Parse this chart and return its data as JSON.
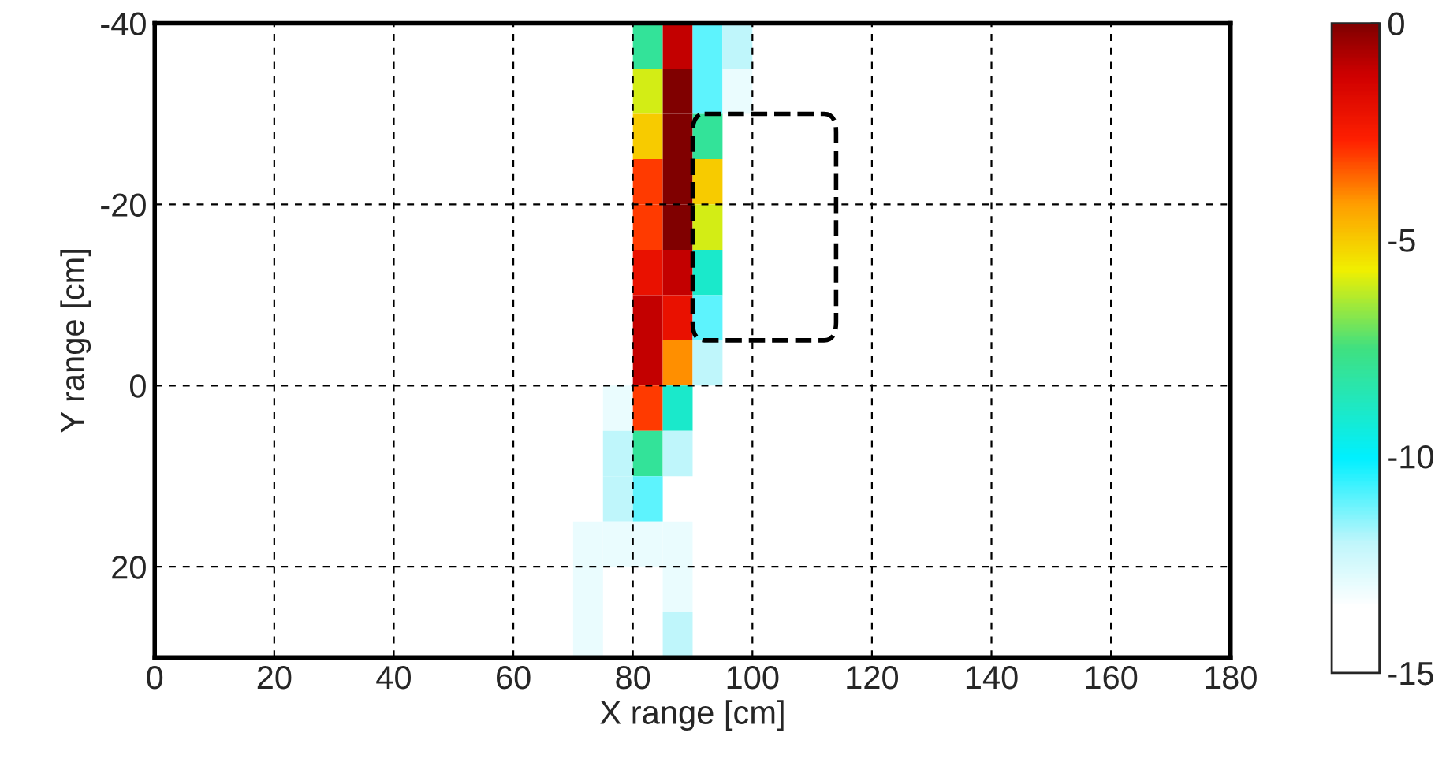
{
  "chart_data": {
    "type": "heatmap",
    "xlabel": "X range [cm]",
    "ylabel": "Y range [cm]",
    "x": [
      2.5,
      7.5,
      12.5,
      17.5,
      22.5,
      27.5,
      32.5,
      37.5,
      42.5,
      47.5,
      52.5,
      57.5,
      62.5,
      67.5,
      72.5,
      77.5,
      82.5,
      87.5,
      92.5,
      97.5,
      102.5,
      107.5,
      112.5,
      117.5,
      122.5,
      127.5,
      132.5,
      137.5,
      142.5,
      147.5,
      152.5,
      157.5,
      162.5,
      167.5,
      172.5,
      177.5
    ],
    "y": [
      -37.5,
      -32.5,
      -27.5,
      -22.5,
      -17.5,
      -12.5,
      -7.5,
      -2.5,
      2.5,
      7.5,
      12.5,
      17.5,
      22.5,
      27.5
    ],
    "xlim": [
      0,
      180
    ],
    "xticks": [
      0,
      20,
      40,
      60,
      80,
      100,
      120,
      140,
      160,
      180
    ],
    "ylim": [
      30,
      -40
    ],
    "yticks": [
      -40,
      -20,
      0,
      20
    ],
    "clim": [
      -15,
      0
    ],
    "cticks": [
      0,
      -5,
      -10,
      -15
    ],
    "grid": true,
    "cells": [
      [
        null,
        null,
        null,
        null,
        null,
        null,
        null,
        null,
        null,
        null,
        null,
        null,
        null,
        null,
        null,
        null,
        -8,
        -1,
        -11,
        -12,
        null,
        null,
        null,
        null,
        null,
        null,
        null,
        null,
        null,
        null,
        null,
        null,
        null,
        null,
        null,
        null
      ],
      [
        null,
        null,
        null,
        null,
        null,
        null,
        null,
        null,
        null,
        null,
        null,
        null,
        null,
        null,
        null,
        null,
        -6,
        0,
        -11,
        -13,
        null,
        null,
        null,
        null,
        null,
        null,
        null,
        null,
        null,
        null,
        null,
        null,
        null,
        null,
        null,
        null
      ],
      [
        null,
        null,
        null,
        null,
        null,
        null,
        null,
        null,
        null,
        null,
        null,
        null,
        null,
        null,
        null,
        null,
        -5,
        0,
        -8,
        null,
        null,
        null,
        null,
        null,
        null,
        null,
        null,
        null,
        null,
        null,
        null,
        null,
        null,
        null,
        null,
        null
      ],
      [
        null,
        null,
        null,
        null,
        null,
        null,
        null,
        null,
        null,
        null,
        null,
        null,
        null,
        null,
        null,
        null,
        -3,
        0,
        -5,
        null,
        null,
        null,
        null,
        null,
        null,
        null,
        null,
        null,
        null,
        null,
        null,
        null,
        null,
        null,
        null,
        null
      ],
      [
        null,
        null,
        null,
        null,
        null,
        null,
        null,
        null,
        null,
        null,
        null,
        null,
        null,
        null,
        null,
        null,
        -3,
        0,
        -6,
        null,
        null,
        null,
        null,
        null,
        null,
        null,
        null,
        null,
        null,
        null,
        null,
        null,
        null,
        null,
        null,
        null
      ],
      [
        null,
        null,
        null,
        null,
        null,
        null,
        null,
        null,
        null,
        null,
        null,
        null,
        null,
        null,
        null,
        null,
        -2,
        -1,
        -9,
        null,
        null,
        null,
        null,
        null,
        null,
        null,
        null,
        null,
        null,
        null,
        null,
        null,
        null,
        null,
        null,
        null
      ],
      [
        null,
        null,
        null,
        null,
        null,
        null,
        null,
        null,
        null,
        null,
        null,
        null,
        null,
        null,
        null,
        null,
        -1,
        -2,
        -11,
        null,
        null,
        null,
        null,
        null,
        null,
        null,
        null,
        null,
        null,
        null,
        null,
        null,
        null,
        null,
        null,
        null
      ],
      [
        null,
        null,
        null,
        null,
        null,
        null,
        null,
        null,
        null,
        null,
        null,
        null,
        null,
        null,
        null,
        null,
        -1,
        -4,
        -12,
        null,
        null,
        null,
        null,
        null,
        null,
        null,
        null,
        null,
        null,
        null,
        null,
        null,
        null,
        null,
        null,
        null
      ],
      [
        null,
        null,
        null,
        null,
        null,
        null,
        null,
        null,
        null,
        null,
        null,
        null,
        null,
        null,
        null,
        -13,
        -3,
        -9,
        null,
        null,
        null,
        null,
        null,
        null,
        null,
        null,
        null,
        null,
        null,
        null,
        null,
        null,
        null,
        null,
        null,
        null
      ],
      [
        null,
        null,
        null,
        null,
        null,
        null,
        null,
        null,
        null,
        null,
        null,
        null,
        null,
        null,
        null,
        -12,
        -8,
        -12,
        null,
        null,
        null,
        null,
        null,
        null,
        null,
        null,
        null,
        null,
        null,
        null,
        null,
        null,
        null,
        null,
        null,
        null
      ],
      [
        null,
        null,
        null,
        null,
        null,
        null,
        null,
        null,
        null,
        null,
        null,
        null,
        null,
        null,
        null,
        -12,
        -11,
        null,
        null,
        null,
        null,
        null,
        null,
        null,
        null,
        null,
        null,
        null,
        null,
        null,
        null,
        null,
        null,
        null,
        null,
        null
      ],
      [
        null,
        null,
        null,
        null,
        null,
        null,
        null,
        null,
        null,
        null,
        null,
        null,
        null,
        null,
        -13,
        -13,
        -13,
        -13,
        null,
        null,
        null,
        null,
        null,
        null,
        null,
        null,
        null,
        null,
        null,
        null,
        null,
        null,
        null,
        null,
        null,
        null
      ],
      [
        null,
        null,
        null,
        null,
        null,
        null,
        null,
        null,
        null,
        null,
        null,
        null,
        null,
        null,
        -13,
        null,
        null,
        -13,
        null,
        null,
        null,
        null,
        null,
        null,
        null,
        null,
        null,
        null,
        null,
        null,
        null,
        null,
        null,
        null,
        null,
        null
      ],
      [
        null,
        null,
        null,
        null,
        null,
        null,
        null,
        null,
        null,
        null,
        null,
        null,
        null,
        null,
        -13,
        null,
        null,
        -12,
        null,
        null,
        null,
        null,
        null,
        null,
        null,
        null,
        null,
        null,
        null,
        null,
        null,
        null,
        null,
        null,
        null,
        null
      ]
    ]
  }
}
